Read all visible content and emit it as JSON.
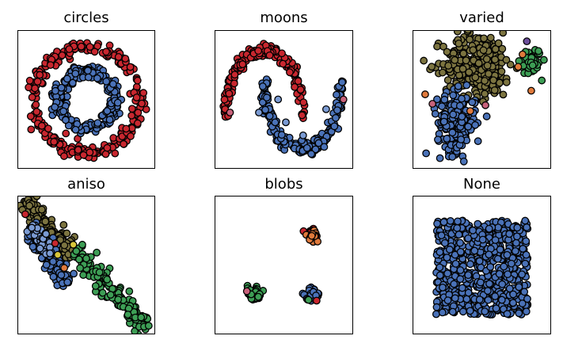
{
  "colors": {
    "red": "#c8272f",
    "blue": "#4a72b8",
    "lightblue": "#7b9bd3",
    "olive": "#7c7440",
    "green": "#3d9e55",
    "orange": "#e07a3c",
    "pink": "#c8627b",
    "purple": "#6d4f9c",
    "yellow": "#d9c63a",
    "edge": "#000000"
  },
  "chart_data": [
    {
      "type": "scatter",
      "title": "circles",
      "xlim": [
        -1.2,
        1.2
      ],
      "ylim": [
        -1.2,
        1.2
      ],
      "grid": false,
      "xlabel": "",
      "ylabel": "",
      "series": [
        {
          "color_key": "red",
          "shape": "ring",
          "cx": 0,
          "cy": 0,
          "r": 0.98,
          "noise": 0.06,
          "count": 260
        },
        {
          "color_key": "blue",
          "shape": "ring",
          "cx": 0,
          "cy": 0,
          "r": 0.52,
          "noise": 0.06,
          "count": 240
        }
      ]
    },
    {
      "type": "scatter",
      "title": "moons",
      "xlim": [
        -1.2,
        2.2
      ],
      "ylim": [
        -0.75,
        1.25
      ],
      "grid": false,
      "xlabel": "",
      "ylabel": "",
      "series": [
        {
          "color_key": "red",
          "shape": "arc",
          "cx": 0,
          "cy": 0,
          "r": 1,
          "a0": 0,
          "a1": 180,
          "noise": 0.05,
          "count": 200
        },
        {
          "color_key": "blue",
          "shape": "arc",
          "cx": 1,
          "cy": 0.5,
          "r": 1,
          "a0": 180,
          "a1": 360,
          "noise": 0.05,
          "count": 220
        },
        {
          "color_key": "lightblue",
          "shape": "points",
          "x": [
            -0.15,
            0.35,
            0.55,
            1.0,
            1.6
          ],
          "y": [
            0.05,
            0.25,
            -0.1,
            -0.3,
            0.1
          ]
        },
        {
          "color_key": "pink",
          "shape": "points",
          "x": [
            2.05,
            -0.9
          ],
          "y": [
            0.25,
            0.05
          ]
        }
      ]
    },
    {
      "type": "scatter",
      "title": "varied",
      "xlim": [
        -12,
        6
      ],
      "ylim": [
        -12,
        6
      ],
      "grid": false,
      "xlabel": "",
      "ylabel": "",
      "series": [
        {
          "color_key": "olive",
          "shape": "blob",
          "cx": -3.5,
          "cy": 1.8,
          "sx": 2.4,
          "sy": 2.2,
          "count": 320
        },
        {
          "color_key": "blue",
          "shape": "blob",
          "cx": -6.5,
          "cy": -6.2,
          "sx": 1.3,
          "sy": 2.0,
          "count": 200
        },
        {
          "color_key": "green",
          "shape": "blob",
          "cx": 3.8,
          "cy": 2.2,
          "sx": 0.7,
          "sy": 0.9,
          "count": 60
        },
        {
          "color_key": "orange",
          "shape": "points",
          "x": [
            -10.8,
            2.6,
            3.8,
            -4.6,
            2.0
          ],
          "y": [
            -2.3,
            3.2,
            -1.8,
            -4.6,
            1.5
          ]
        },
        {
          "color_key": "purple",
          "shape": "points",
          "x": [
            3.2
          ],
          "y": [
            5.0
          ]
        },
        {
          "color_key": "pink",
          "shape": "points",
          "x": [
            -9.8,
            -2.5
          ],
          "y": [
            -3.6,
            -3.8
          ]
        }
      ]
    },
    {
      "type": "scatter",
      "title": "aniso",
      "xlim": [
        -6,
        4
      ],
      "ylim": [
        -5,
        4
      ],
      "grid": false,
      "xlabel": "",
      "ylabel": "",
      "series": [
        {
          "color_key": "olive",
          "shape": "band",
          "x0": -5.8,
          "y0": 4.0,
          "x1": -2.0,
          "y1": 0.2,
          "width": 0.35,
          "count": 150
        },
        {
          "color_key": "blue",
          "shape": "band",
          "x0": -5.2,
          "y0": 2.2,
          "x1": -2.5,
          "y1": -1.8,
          "width": 0.35,
          "count": 150
        },
        {
          "color_key": "lightblue",
          "shape": "band",
          "x0": -5.3,
          "y0": 2.5,
          "x1": -3.8,
          "y1": 0.3,
          "width": 0.2,
          "count": 30
        },
        {
          "color_key": "green",
          "shape": "band",
          "x0": -1.8,
          "y0": 0.5,
          "x1": 3.7,
          "y1": -4.8,
          "width": 0.35,
          "count": 160
        },
        {
          "color_key": "red",
          "shape": "points",
          "x": [
            -5.7,
            -3.4
          ],
          "y": [
            3.0,
            1.0
          ]
        },
        {
          "color_key": "yellow",
          "shape": "points",
          "x": [
            -3.2,
            -2.0
          ],
          "y": [
            0.2,
            0.9
          ]
        },
        {
          "color_key": "orange",
          "shape": "points",
          "x": [
            -2.7
          ],
          "y": [
            -0.7
          ]
        }
      ]
    },
    {
      "type": "scatter",
      "title": "blobs",
      "xlim": [
        -12,
        6
      ],
      "ylim": [
        -12,
        6
      ],
      "grid": false,
      "xlabel": "",
      "ylabel": "",
      "series": [
        {
          "color_key": "red",
          "shape": "blob",
          "cx": 0.9,
          "cy": 1.2,
          "sx": 0.45,
          "sy": 0.45,
          "count": 40
        },
        {
          "color_key": "orange",
          "shape": "blob",
          "cx": 1.0,
          "cy": 0.9,
          "sx": 0.35,
          "sy": 0.35,
          "count": 25
        },
        {
          "color_key": "green",
          "shape": "blob",
          "cx": -7.1,
          "cy": -7.0,
          "sx": 0.45,
          "sy": 0.4,
          "count": 50
        },
        {
          "color_key": "blue",
          "shape": "blob",
          "cx": 0.9,
          "cy": -7.0,
          "sx": 0.45,
          "sy": 0.4,
          "count": 45
        },
        {
          "color_key": "pink",
          "shape": "points",
          "x": [
            -8.1
          ],
          "y": [
            -6.6
          ]
        },
        {
          "color_key": "red",
          "shape": "points",
          "x": [
            1.5
          ],
          "y": [
            -7.9
          ]
        },
        {
          "color_key": "green",
          "shape": "points",
          "x": [
            0.4
          ],
          "y": [
            -7.8
          ]
        }
      ]
    },
    {
      "type": "scatter",
      "title": "None",
      "xlim": [
        0,
        1
      ],
      "ylim": [
        0,
        1
      ],
      "grid": false,
      "xlabel": "",
      "ylabel": "",
      "series": [
        {
          "color_key": "blue",
          "shape": "uniform",
          "x0": 0.15,
          "y0": 0.12,
          "x1": 0.85,
          "y1": 0.84,
          "count": 700
        }
      ]
    }
  ]
}
